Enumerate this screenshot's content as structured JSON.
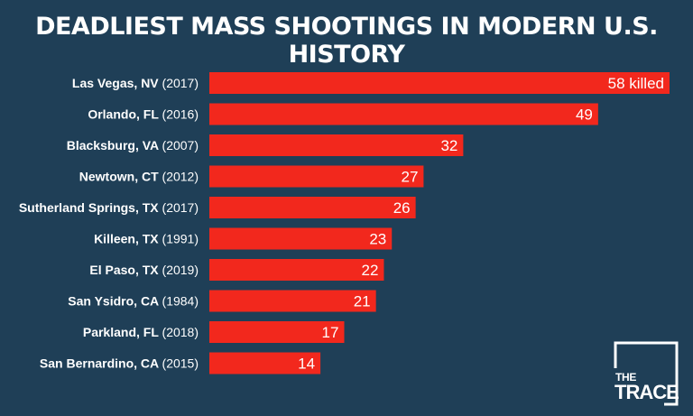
{
  "colors": {
    "background": "#1f3f57",
    "bar": "#f2281d",
    "text": "#ffffff"
  },
  "logo": {
    "line1": "THE",
    "line2": "TRACE"
  },
  "chart_data": {
    "type": "bar",
    "orientation": "horizontal",
    "title": "DEADLIEST MASS SHOOTINGS IN MODERN U.S. HISTORY",
    "categories": [
      {
        "name": "Las Vegas, NV",
        "year": "(2017)"
      },
      {
        "name": "Orlando, FL",
        "year": "(2016)"
      },
      {
        "name": "Blacksburg, VA",
        "year": "(2007)"
      },
      {
        "name": "Newtown, CT",
        "year": "(2012)"
      },
      {
        "name": "Sutherland Springs, TX",
        "year": "(2017)"
      },
      {
        "name": "Killeen, TX",
        "year": "(1991)"
      },
      {
        "name": "El Paso, TX",
        "year": "(2019)"
      },
      {
        "name": "San Ysidro, CA",
        "year": "(1984)"
      },
      {
        "name": "Parkland, FL",
        "year": "(2018)"
      },
      {
        "name": "San Bernardino, CA",
        "year": "(2015)"
      }
    ],
    "values": [
      58,
      49,
      32,
      27,
      26,
      23,
      22,
      21,
      17,
      14
    ],
    "value_labels": [
      "58 killed",
      "49",
      "32",
      "27",
      "26",
      "23",
      "22",
      "21",
      "17",
      "14"
    ],
    "xlim": [
      0,
      58
    ],
    "grid": false,
    "legend": "none"
  }
}
